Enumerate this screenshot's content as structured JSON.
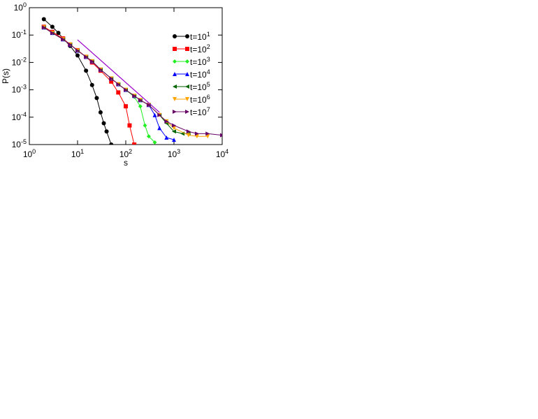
{
  "chart_data": {
    "type": "scatter-line",
    "xlabel": "s",
    "ylabel": "P(s)",
    "xscale": "log",
    "yscale": "log",
    "xlim": [
      1,
      10000
    ],
    "ylim": [
      1e-05,
      1
    ],
    "xticks": [
      {
        "value": 1,
        "label": "10^0"
      },
      {
        "value": 10,
        "label": "10^1"
      },
      {
        "value": 100,
        "label": "10^2"
      },
      {
        "value": 1000,
        "label": "10^3"
      },
      {
        "value": 10000,
        "label": "10^4"
      }
    ],
    "yticks": [
      {
        "value": 1e-05,
        "label": "10^-5"
      },
      {
        "value": 0.0001,
        "label": "10^-4"
      },
      {
        "value": 0.001,
        "label": "10^-3"
      },
      {
        "value": 0.01,
        "label": "10^-2"
      },
      {
        "value": 0.1,
        "label": "10^-1"
      },
      {
        "value": 1,
        "label": "10^0"
      }
    ],
    "legend": "upper right",
    "series": [
      {
        "name": "t=10^1",
        "color": "#000000",
        "marker": "circle",
        "x": [
          2,
          3,
          4,
          5,
          7,
          10,
          15,
          20,
          25,
          30,
          35,
          40,
          50
        ],
        "y": [
          0.38,
          0.2,
          0.12,
          0.075,
          0.04,
          0.018,
          0.005,
          0.0015,
          0.0005,
          0.00015,
          6e-05,
          3e-05,
          1e-05
        ]
      },
      {
        "name": "t=10^2",
        "color": "#ff0000",
        "marker": "square",
        "x": [
          2,
          3,
          5,
          7,
          10,
          15,
          20,
          30,
          50,
          70,
          100,
          120,
          150
        ],
        "y": [
          0.2,
          0.13,
          0.075,
          0.045,
          0.028,
          0.016,
          0.01,
          0.005,
          0.002,
          0.0008,
          0.00025,
          5e-05,
          1e-05
        ]
      },
      {
        "name": "t=10^3",
        "color": "#22ee22",
        "marker": "diamond",
        "x": [
          2,
          3,
          5,
          7,
          10,
          15,
          20,
          30,
          50,
          70,
          100,
          150,
          200,
          250,
          300,
          400
        ],
        "y": [
          0.19,
          0.12,
          0.07,
          0.045,
          0.027,
          0.016,
          0.011,
          0.0055,
          0.0026,
          0.0016,
          0.001,
          0.00055,
          0.00025,
          5e-05,
          2e-05,
          1.2e-05
        ]
      },
      {
        "name": "t=10^4",
        "color": "#0000ff",
        "marker": "triangle-up",
        "x": [
          2,
          3,
          5,
          7,
          10,
          15,
          20,
          30,
          50,
          70,
          100,
          150,
          200,
          300,
          400,
          500,
          700,
          1000
        ],
        "y": [
          0.19,
          0.12,
          0.07,
          0.045,
          0.027,
          0.016,
          0.011,
          0.0055,
          0.0026,
          0.0016,
          0.001,
          0.0006,
          0.00042,
          0.00028,
          0.00012,
          4e-05,
          1.8e-05,
          1.5e-05
        ]
      },
      {
        "name": "t=10^5",
        "color": "#006400",
        "marker": "triangle-left",
        "x": [
          2,
          3,
          5,
          7,
          10,
          15,
          20,
          30,
          50,
          70,
          100,
          150,
          200,
          300,
          500,
          700,
          1000,
          1500,
          2000
        ],
        "y": [
          0.19,
          0.12,
          0.07,
          0.045,
          0.027,
          0.016,
          0.011,
          0.0055,
          0.0026,
          0.0016,
          0.001,
          0.0006,
          0.00042,
          0.00028,
          0.00012,
          6e-05,
          3e-05,
          2.5e-05,
          2.5e-05
        ]
      },
      {
        "name": "t=10^6",
        "color": "#ffa500",
        "marker": "triangle-down",
        "x": [
          2,
          3,
          5,
          7,
          10,
          15,
          20,
          30,
          50,
          70,
          100,
          150,
          200,
          300,
          500,
          700,
          1000,
          2000,
          3000,
          5000
        ],
        "y": [
          0.19,
          0.12,
          0.07,
          0.045,
          0.027,
          0.016,
          0.011,
          0.0055,
          0.0026,
          0.0016,
          0.001,
          0.0006,
          0.00042,
          0.00028,
          0.00012,
          7e-05,
          4e-05,
          2.2e-05,
          2e-05,
          2e-05
        ]
      },
      {
        "name": "t=10^7",
        "color": "#660066",
        "marker": "triangle-right",
        "x": [
          2,
          3,
          5,
          7,
          10,
          15,
          20,
          30,
          50,
          70,
          100,
          150,
          200,
          300,
          500,
          700,
          1000,
          2000,
          3000,
          5000,
          10000
        ],
        "y": [
          0.19,
          0.12,
          0.07,
          0.045,
          0.027,
          0.016,
          0.011,
          0.0055,
          0.0026,
          0.0016,
          0.001,
          0.0006,
          0.00042,
          0.00028,
          0.00012,
          7e-05,
          5e-05,
          3e-05,
          2.5e-05,
          2.5e-05,
          2.2e-05
        ]
      },
      {
        "color": "#9900cc",
        "x": [
          10,
          500
        ],
        "y": [
          0.067,
          0.00015
        ]
      }
    ]
  }
}
